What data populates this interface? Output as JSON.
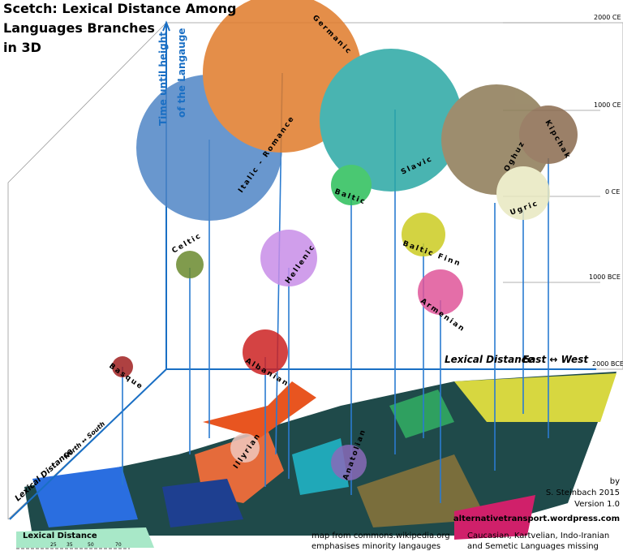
{
  "title": [
    "Scetch: Lexical Distance Among",
    "Languages Branches",
    "in 3D"
  ],
  "axes": {
    "vertical": [
      "Time until height",
      "of the Langauge"
    ],
    "horizontal": "Lexical Distance",
    "horizontal_dir": "East ↔ West",
    "depth": "Lexical Distance",
    "depth_dir": "North ↔ South"
  },
  "time_labels": [
    "2000 CE",
    "1000 CE",
    "0 CE",
    "1000 BCE",
    "2000 BCE"
  ],
  "branches": [
    "Germanic",
    "Italic - Romance",
    "Slavic",
    "Oghuz",
    "Kipchak",
    "Ugric",
    "Baltic",
    "Baltic Finn",
    "Celtic",
    "Hellenic",
    "Armenian",
    "Albanian",
    "Basque",
    "Illyrian",
    "Anatolian"
  ],
  "credits": [
    "by",
    "S. Steinbach 2015",
    "Version 1.0",
    "alternativetransport.wordpress.com"
  ],
  "notes": {
    "map": [
      "map  from commons.wikipedia.org",
      "emphasises minority langauges"
    ],
    "missing": [
      "Caucasian, Kartvelian, Indo-Iranian",
      "and Semetic Languages missing"
    ]
  },
  "scale": {
    "title": "Lexical Distance",
    "ticks": [
      "25",
      "35",
      "50",
      "70"
    ]
  }
}
